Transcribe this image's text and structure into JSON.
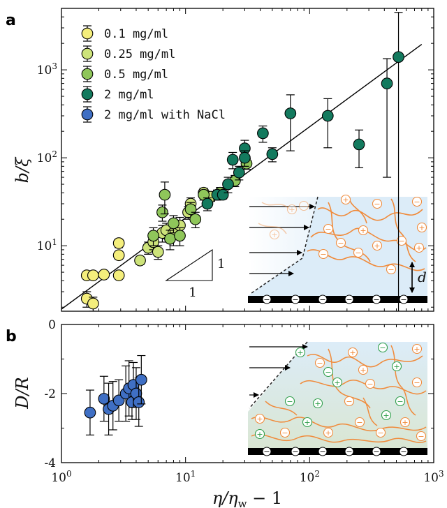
{
  "panels": {
    "a": {
      "letter": "a",
      "ylabel": "b/ξ",
      "y_ticks": [
        {
          "v": 1,
          "base": "10",
          "exp": "1"
        },
        {
          "v": 2,
          "base": "10",
          "exp": "2"
        },
        {
          "v": 3,
          "base": "10",
          "exp": "3"
        }
      ],
      "slope": {
        "rise_label": "1",
        "run_label": "1"
      },
      "inset": {
        "d_label": "d"
      }
    },
    "b": {
      "letter": "b",
      "ylabel": "D/R",
      "y_ticks": [
        "0",
        "-2",
        "-4"
      ],
      "inset": {}
    }
  },
  "xlabel": {
    "main": "η/η",
    "sub": "w",
    "tail": " − 1"
  },
  "x_ticks": [
    {
      "base": "10",
      "exp": "0"
    },
    {
      "base": "10",
      "exp": "1"
    },
    {
      "base": "10",
      "exp": "2"
    },
    {
      "base": "10",
      "exp": "3"
    }
  ],
  "colors": {
    "c01": "#f4ee7c",
    "c025": "#cde37a",
    "c05": "#8fc65a",
    "c2": "#137a5e",
    "cNaCl": "#3f6fc4",
    "inset_bg": "#dcecf8",
    "polymer": "#f08a3a",
    "surface": "#000000",
    "ion_green": "#2e9e4a"
  },
  "chart_data": [
    {
      "type": "scatter",
      "panel": "a",
      "xlabel": "η/ηw − 1",
      "ylabel": "b/ξ",
      "xscale": "log",
      "yscale": "log",
      "xlim": [
        1,
        1000
      ],
      "ylim": [
        1.8,
        5000
      ],
      "legend_position": "top-left",
      "fit_line": {
        "slope": 1,
        "points": [
          [
            1,
            1.9
          ],
          [
            800,
            1950
          ]
        ]
      },
      "series": [
        {
          "name": "0.1 mg/ml",
          "color_key": "c01",
          "points": [
            [
              1.6,
              4.6,
              0.3
            ],
            [
              1.8,
              4.6,
              0.3
            ],
            [
              2.2,
              4.7,
              0.3
            ],
            [
              2.9,
              10.7,
              1.2
            ],
            [
              2.9,
              7.8,
              0.8
            ],
            [
              2.9,
              4.6,
              0.4
            ],
            [
              1.6,
              2.5,
              0.5
            ],
            [
              1.8,
              2.2,
              0.4
            ]
          ]
        },
        {
          "name": "0.25 mg/ml",
          "color_key": "c025",
          "points": [
            [
              4.3,
              6.8,
              0.7
            ],
            [
              5.0,
              9.5,
              1.5
            ],
            [
              5.5,
              11.0,
              2.0
            ],
            [
              6.0,
              8.5,
              1.5
            ],
            [
              6.5,
              14.0,
              3.0
            ],
            [
              7.0,
              15.0,
              3.0
            ],
            [
              8.0,
              14.0,
              4.0
            ],
            [
              9.0,
              17.0,
              4.0
            ],
            [
              10.5,
              24.0,
              4.0
            ],
            [
              11.0,
              30.0,
              5.0
            ],
            [
              14.0,
              40.0,
              5.0
            ],
            [
              16.0,
              36.0,
              4.0
            ]
          ]
        },
        {
          "name": "0.5 mg/ml",
          "color_key": "c05",
          "points": [
            [
              5.5,
              13.0,
              3.0
            ],
            [
              6.5,
              24.0,
              5.0
            ],
            [
              6.8,
              38.0,
              15.0
            ],
            [
              7.5,
              12.0,
              3.0
            ],
            [
              8.0,
              18.0,
              4.0
            ],
            [
              9.0,
              13.0,
              3.0
            ],
            [
              11.0,
              26.0,
              5.0
            ],
            [
              12.0,
              20.0,
              4.0
            ],
            [
              14.0,
              38.0,
              5.0
            ],
            [
              19.0,
              40.0,
              6.0
            ],
            [
              25.0,
              55.0,
              8.0
            ],
            [
              31.0,
              86.0,
              12.0
            ]
          ]
        },
        {
          "name": "2 mg/ml",
          "color_key": "c2",
          "points": [
            [
              15.0,
              30.0,
              5.0
            ],
            [
              18.0,
              38.0,
              5.0
            ],
            [
              20.0,
              38.0,
              4.0
            ],
            [
              22.0,
              50.0,
              10.0
            ],
            [
              24.0,
              95.0,
              20.0
            ],
            [
              27.0,
              68.0,
              12.0
            ],
            [
              30.0,
              128.0,
              30.0
            ],
            [
              30.0,
              100.0,
              20.0
            ],
            [
              42.0,
              190.0,
              40.0
            ],
            [
              50.0,
              110.0,
              20.0
            ],
            [
              70.0,
              320.0,
              200.0
            ],
            [
              140.0,
              300.0,
              170.0
            ],
            [
              250.0,
              142.0,
              65.0
            ],
            [
              420.0,
              700.0,
              640.0
            ],
            [
              520.0,
              1400.0,
              3100.0
            ]
          ]
        },
        {
          "name": "2 mg/ml with NaCl",
          "color_key": "cNaCl",
          "points": []
        }
      ]
    },
    {
      "type": "scatter",
      "panel": "b",
      "xlabel": "η/ηw − 1",
      "ylabel": "D/R",
      "xscale": "log",
      "xlim": [
        1,
        1000
      ],
      "ylim": [
        -4,
        0
      ],
      "series": [
        {
          "name": "2 mg/ml with NaCl",
          "color_key": "cNaCl",
          "points": [
            [
              1.7,
              -2.55,
              0.65
            ],
            [
              2.2,
              -2.15,
              0.65
            ],
            [
              2.4,
              -2.45,
              0.75
            ],
            [
              2.6,
              -2.35,
              0.7
            ],
            [
              2.9,
              -2.2,
              0.6
            ],
            [
              3.3,
              -2.0,
              0.8
            ],
            [
              3.5,
              -1.85,
              0.8
            ],
            [
              3.7,
              -2.25,
              0.5
            ],
            [
              3.8,
              -1.75,
              0.65
            ],
            [
              4.0,
              -2.0,
              0.75
            ],
            [
              4.2,
              -2.25,
              0.7
            ],
            [
              4.4,
              -1.6,
              0.7
            ]
          ]
        }
      ]
    }
  ]
}
